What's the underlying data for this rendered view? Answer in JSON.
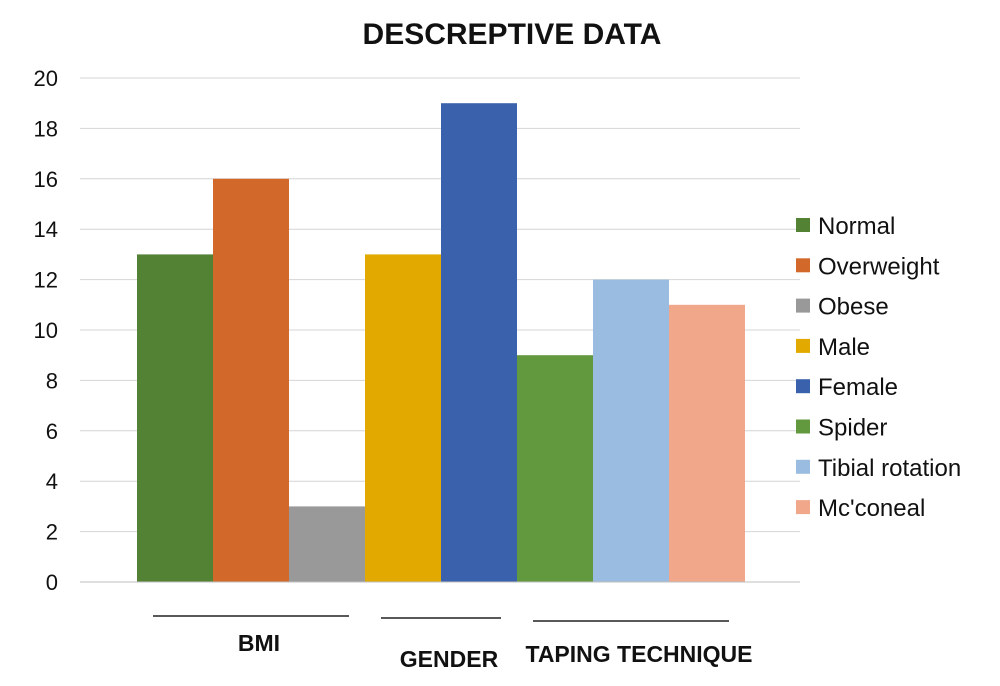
{
  "chart_data": {
    "type": "bar",
    "title": "DESCREPTIVE DATA",
    "ylim": [
      0,
      20
    ],
    "yticks": [
      0,
      2,
      4,
      6,
      8,
      10,
      12,
      14,
      16,
      18,
      20
    ],
    "grid": true,
    "legend_position": "right",
    "bars": [
      {
        "name": "Normal",
        "value": 13,
        "color": "#548235"
      },
      {
        "name": "Overweight",
        "value": 16,
        "color": "#D2692A"
      },
      {
        "name": "Obese",
        "value": 3,
        "color": "#999999"
      },
      {
        "name": "Male",
        "value": 13,
        "color": "#E2AA00"
      },
      {
        "name": "Female",
        "value": 19,
        "color": "#3A62AC"
      },
      {
        "name": "Spider",
        "value": 9,
        "color": "#62993E"
      },
      {
        "name": "Tibial rotation",
        "value": 12,
        "color": "#9ABCE0"
      },
      {
        "name": "Mc'coneal",
        "value": 11,
        "color": "#F0A78A"
      }
    ],
    "groups": [
      {
        "label": "BMI",
        "bars": [
          0,
          2
        ]
      },
      {
        "label": "GENDER",
        "bars": [
          3,
          4
        ]
      },
      {
        "label": "TAPING TECHNIQUE",
        "bars": [
          5,
          7
        ]
      }
    ]
  }
}
